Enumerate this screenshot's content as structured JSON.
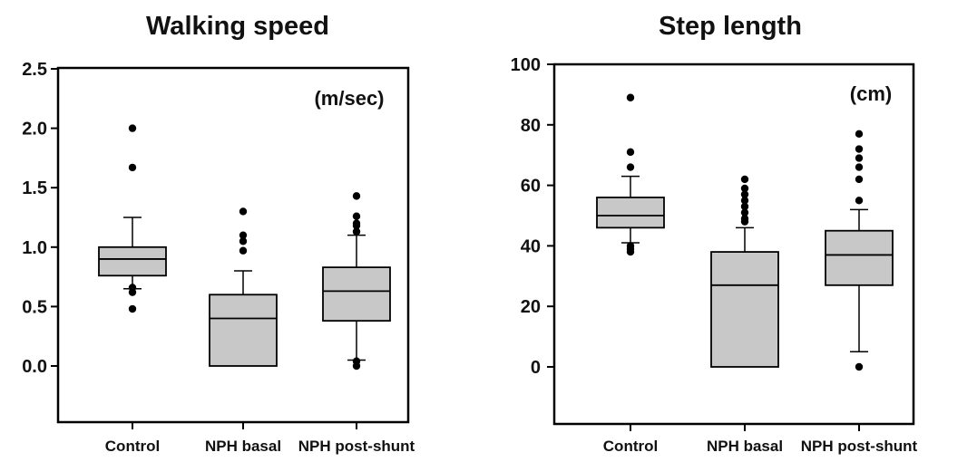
{
  "chart_data": [
    {
      "type": "box",
      "title": "Walking speed",
      "unit_label": "(m/sec)",
      "categories": [
        "Control",
        "NPH basal",
        "NPH post-shunt"
      ],
      "ylim": [
        -0.45,
        2.5
      ],
      "yticks": [
        0.0,
        0.5,
        1.0,
        1.5,
        2.0,
        2.5
      ],
      "ytick_labels": [
        "0.0",
        "0.5",
        "1.0",
        "1.5",
        "2.0",
        "2.5"
      ],
      "boxes": [
        {
          "whisker_low": 0.65,
          "q1": 0.76,
          "median": 0.9,
          "q3": 1.0,
          "whisker_high": 1.25,
          "outliers": [
            0.48,
            0.62,
            0.66,
            1.67,
            2.0
          ]
        },
        {
          "whisker_low": 0.0,
          "q1": 0.0,
          "median": 0.4,
          "q3": 0.6,
          "whisker_high": 0.8,
          "outliers": [
            0.97,
            1.05,
            1.1,
            1.3
          ]
        },
        {
          "whisker_low": 0.05,
          "q1": 0.38,
          "median": 0.63,
          "q3": 0.83,
          "whisker_high": 1.1,
          "outliers": [
            0.0,
            0.04,
            1.13,
            1.18,
            1.2,
            1.26,
            1.43
          ]
        }
      ]
    },
    {
      "type": "box",
      "title": "Step length",
      "unit_label": "(cm)",
      "categories": [
        "Control",
        "NPH basal",
        "NPH post-shunt"
      ],
      "ylim": [
        -19,
        100
      ],
      "yticks": [
        0,
        20,
        40,
        60,
        80,
        100
      ],
      "ytick_labels": [
        "0",
        "20",
        "40",
        "60",
        "80",
        "100"
      ],
      "boxes": [
        {
          "whisker_low": 41,
          "q1": 46,
          "median": 50,
          "q3": 56,
          "whisker_high": 63,
          "outliers": [
            38,
            39,
            40,
            66,
            71,
            89
          ]
        },
        {
          "whisker_low": 0,
          "q1": 0,
          "median": 27,
          "q3": 38,
          "whisker_high": 46,
          "outliers": [
            48,
            49,
            51,
            53,
            55,
            57,
            59,
            62
          ]
        },
        {
          "whisker_low": 5,
          "q1": 27,
          "median": 37,
          "q3": 45,
          "whisker_high": 52,
          "outliers": [
            0,
            55,
            62,
            66,
            69,
            72,
            77
          ]
        }
      ]
    }
  ]
}
